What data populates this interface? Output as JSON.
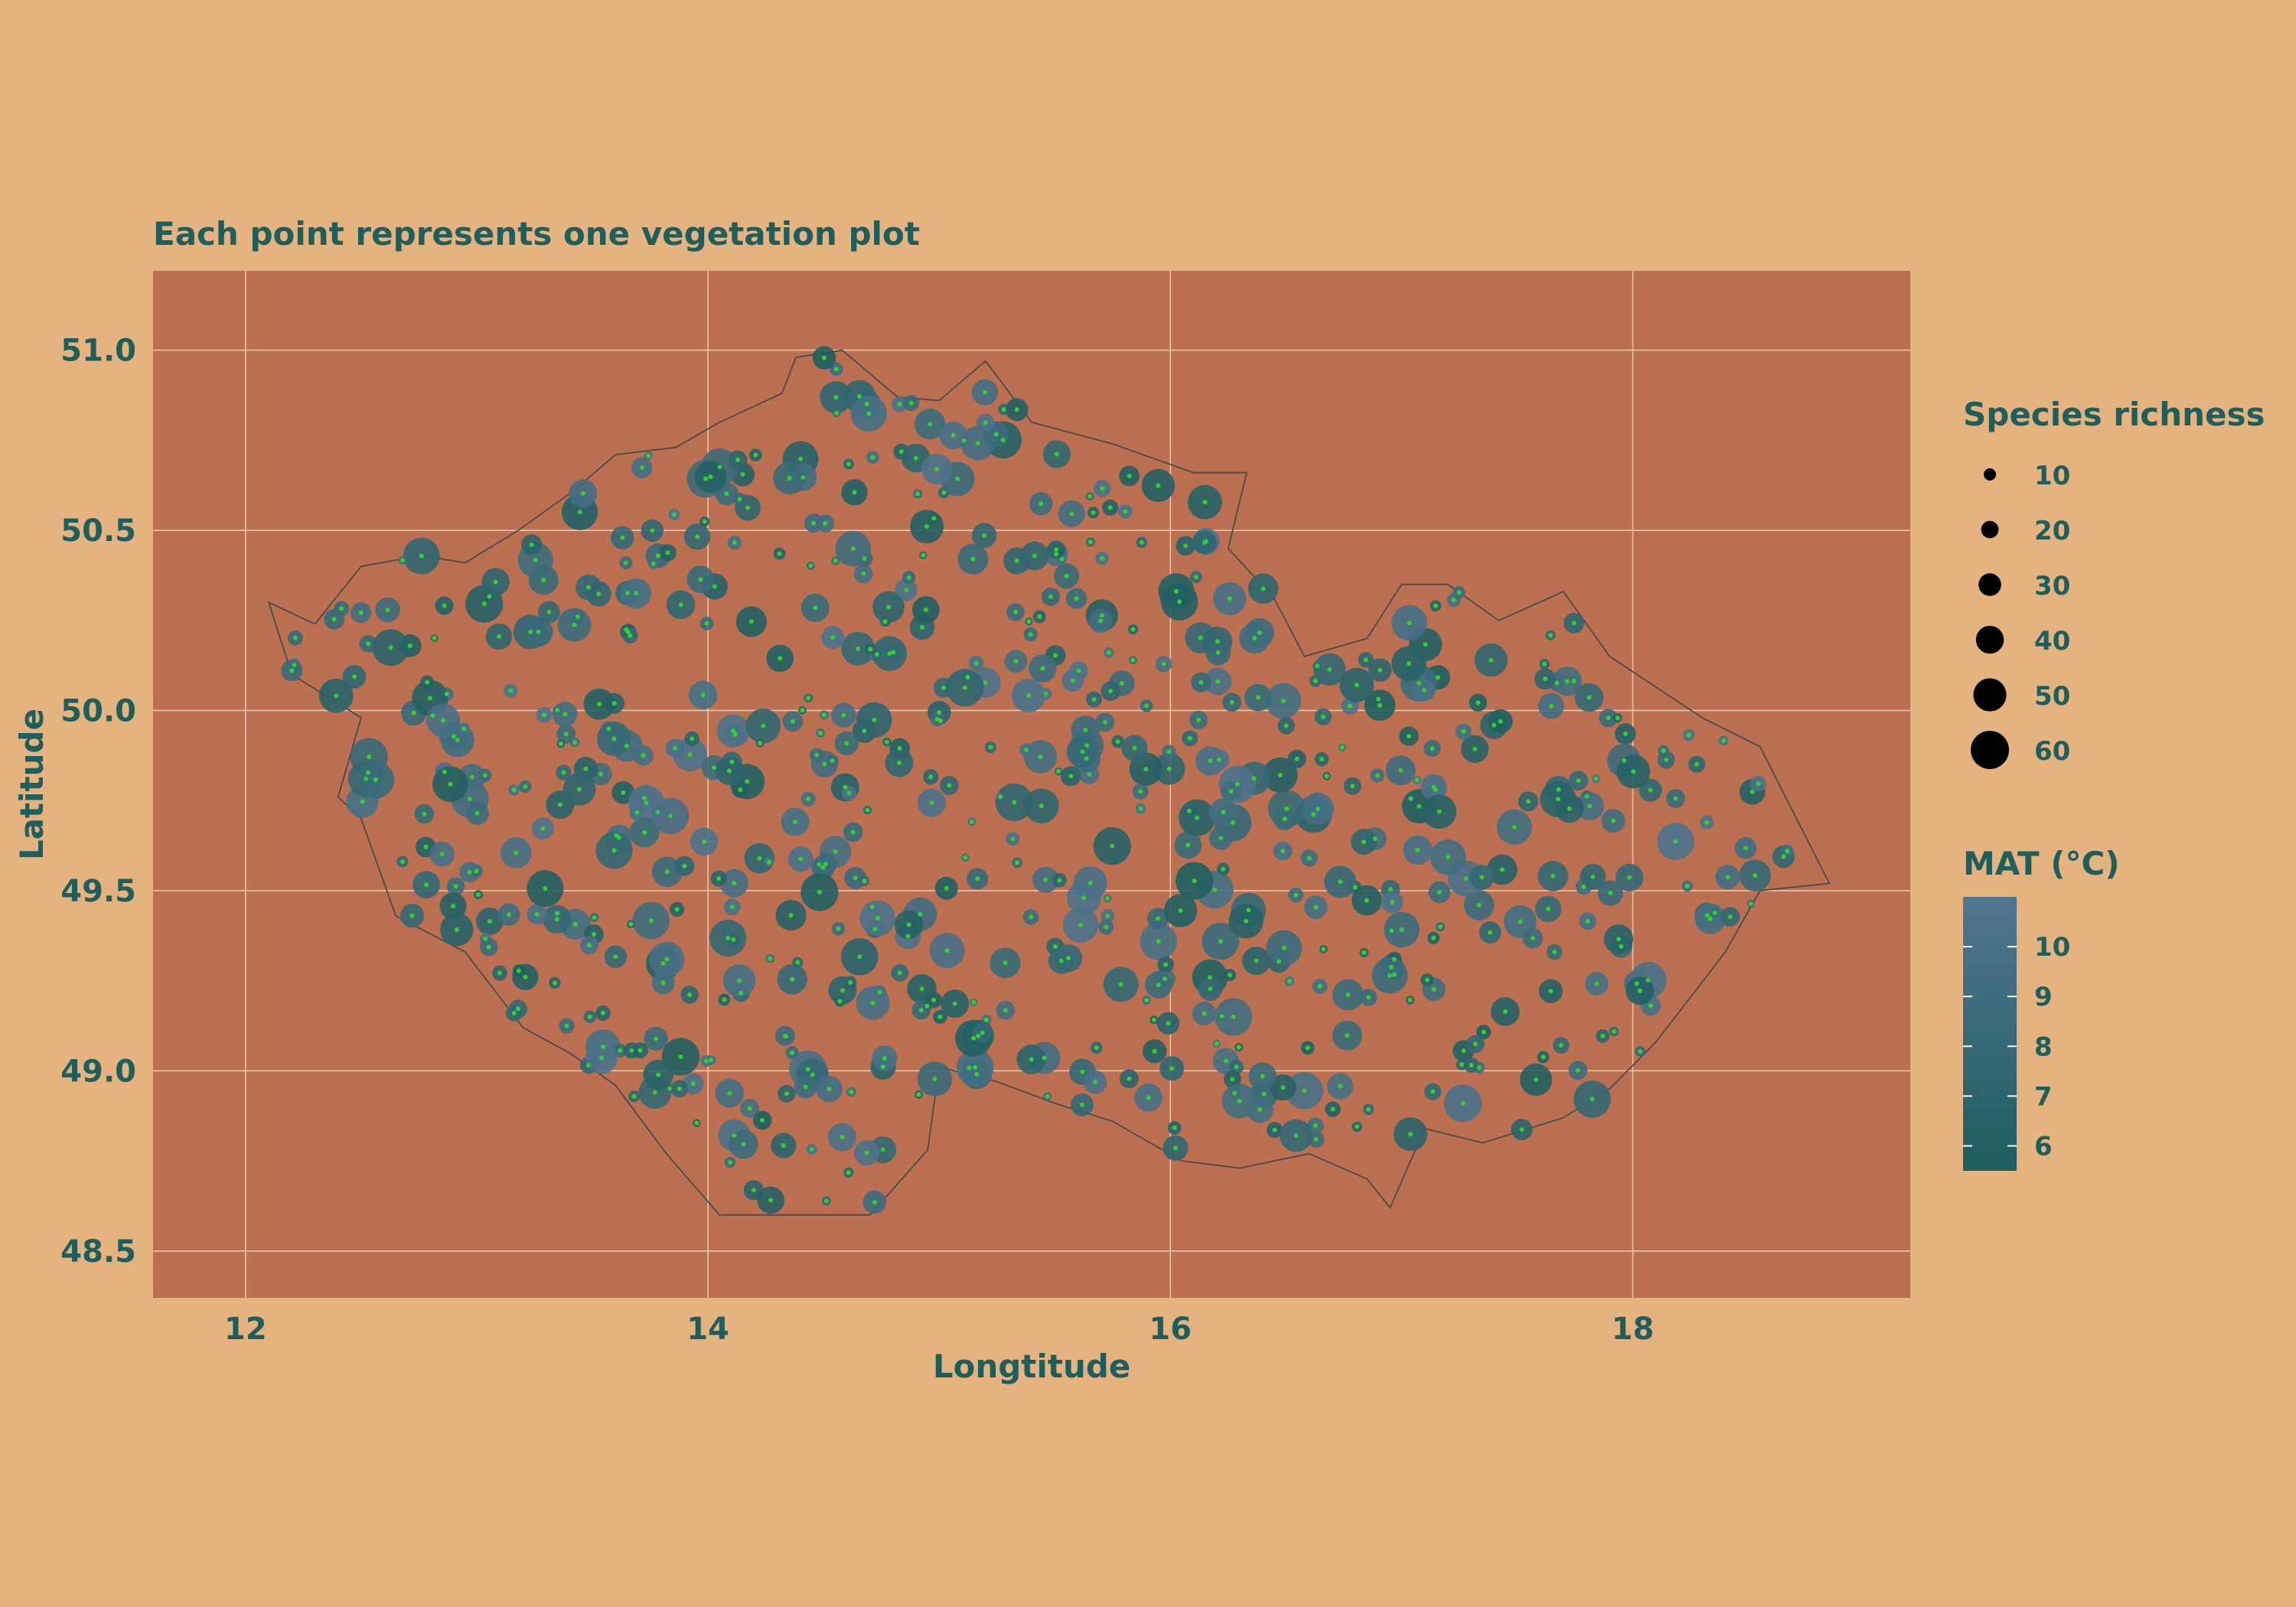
{
  "chart_data": {
    "type": "scatter",
    "title": "",
    "subtitle": "Each point represents one vegetation plot",
    "xlabel": "Longtitude",
    "ylabel": "Latitude",
    "xlim": [
      11.6,
      19.2
    ],
    "ylim": [
      48.37,
      51.22
    ],
    "x_ticks": [
      12,
      14,
      16,
      18
    ],
    "x_tick_labels": [
      "12",
      "14",
      "16",
      "18"
    ],
    "y_ticks": [
      48.5,
      49.0,
      49.5,
      50.0,
      50.5,
      51.0
    ],
    "y_tick_labels": [
      "48.5",
      "49.0",
      "49.5",
      "50.0",
      "50.5",
      "51.0"
    ],
    "grid": true,
    "legend_position": "right",
    "legend_size": {
      "title": "Species richness",
      "values": [
        10,
        20,
        30,
        40,
        50,
        60
      ],
      "labels": [
        "10",
        "20",
        "30",
        "40",
        "50",
        "60"
      ]
    },
    "legend_color": {
      "title": "MAT (°C)",
      "range": [
        5.5,
        11.0
      ],
      "values": [
        6,
        7,
        8,
        9,
        10
      ],
      "labels": [
        "6",
        "7",
        "8",
        "9",
        "10"
      ],
      "colors": [
        "#1D5E5E",
        "#527590"
      ]
    },
    "colors": {
      "background": "#E4B380",
      "panel": "#BA7051",
      "grid": "#E8C6AE",
      "text": "#1E5E5C",
      "border": "#4A4A4A",
      "centroid": "#35CF35",
      "mat_low": "#1D5E5E",
      "mat_high": "#527590"
    },
    "border_outline": [
      [
        12.1,
        50.3
      ],
      [
        12.3,
        50.24
      ],
      [
        12.5,
        50.4
      ],
      [
        12.76,
        50.43
      ],
      [
        12.95,
        50.41
      ],
      [
        13.18,
        50.5
      ],
      [
        13.42,
        50.61
      ],
      [
        13.6,
        50.71
      ],
      [
        13.86,
        50.73
      ],
      [
        14.05,
        50.8
      ],
      [
        14.32,
        50.88
      ],
      [
        14.38,
        50.98
      ],
      [
        14.58,
        51.0
      ],
      [
        14.82,
        50.87
      ],
      [
        15.0,
        50.86
      ],
      [
        15.2,
        50.97
      ],
      [
        15.4,
        50.8
      ],
      [
        15.75,
        50.74
      ],
      [
        16.1,
        50.66
      ],
      [
        16.33,
        50.66
      ],
      [
        16.25,
        50.45
      ],
      [
        16.45,
        50.31
      ],
      [
        16.58,
        50.15
      ],
      [
        16.85,
        50.2
      ],
      [
        17.0,
        50.35
      ],
      [
        17.2,
        50.35
      ],
      [
        17.42,
        50.25
      ],
      [
        17.7,
        50.33
      ],
      [
        17.9,
        50.15
      ],
      [
        18.3,
        49.98
      ],
      [
        18.55,
        49.9
      ],
      [
        18.85,
        49.52
      ],
      [
        18.55,
        49.5
      ],
      [
        18.4,
        49.33
      ],
      [
        18.1,
        49.08
      ],
      [
        17.9,
        48.95
      ],
      [
        17.7,
        48.87
      ],
      [
        17.35,
        48.8
      ],
      [
        17.1,
        48.84
      ],
      [
        16.95,
        48.62
      ],
      [
        16.85,
        48.7
      ],
      [
        16.6,
        48.77
      ],
      [
        16.3,
        48.73
      ],
      [
        16.05,
        48.75
      ],
      [
        15.75,
        48.86
      ],
      [
        15.5,
        48.91
      ],
      [
        15.25,
        48.97
      ],
      [
        15.0,
        49.01
      ],
      [
        14.95,
        48.78
      ],
      [
        14.7,
        48.6
      ],
      [
        14.38,
        48.6
      ],
      [
        14.05,
        48.6
      ],
      [
        13.82,
        48.77
      ],
      [
        13.6,
        48.96
      ],
      [
        13.4,
        49.05
      ],
      [
        13.2,
        49.12
      ],
      [
        12.95,
        49.33
      ],
      [
        12.65,
        49.43
      ],
      [
        12.5,
        49.7
      ],
      [
        12.4,
        49.76
      ],
      [
        12.5,
        49.98
      ],
      [
        12.2,
        50.1
      ],
      [
        12.1,
        50.3
      ]
    ]
  }
}
